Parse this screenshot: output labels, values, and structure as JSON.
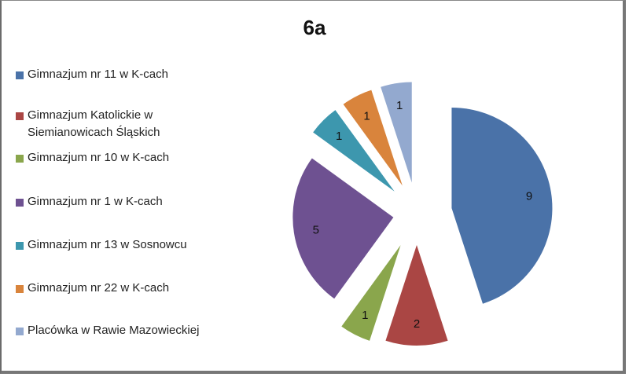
{
  "chart_data": {
    "type": "pie",
    "title": "6a",
    "exploded": true,
    "legend_position": "left",
    "categories": [
      "Gimnazjum nr 11 w K-cach",
      "Gimnazjum Katolickie w Siemianowicach Śląskich",
      "Gimnazjum nr 10 w K-cach",
      "Gimnazjum nr 1 w K-cach",
      "Gimnazjum nr 13 w Sosnowcu",
      "Gimnazjum nr 22 w K-cach",
      "Placówka w Rawie Mazowieckiej"
    ],
    "values": [
      9,
      2,
      1,
      5,
      1,
      1,
      1
    ],
    "colors": [
      "#4a72a8",
      "#aa4644",
      "#8aa64c",
      "#6e5191",
      "#3d97ae",
      "#d9843c",
      "#93a9cf"
    ],
    "data_labels": [
      "9",
      "2",
      "1",
      "5",
      "1",
      "1",
      "1"
    ]
  },
  "legend": {
    "items": [
      {
        "label_lines": [
          "Gimnazjum nr 11 w K-cach"
        ],
        "color": "#4a72a8"
      },
      {
        "label_lines": [
          "Gimnazjum Katolickie w",
          "Siemianowicach Śląskich"
        ],
        "color": "#aa4644"
      },
      {
        "label_lines": [
          "Gimnazjum nr 10 w K-cach"
        ],
        "color": "#8aa64c"
      },
      {
        "label_lines": [
          "Gimnazjum nr 1 w K-cach"
        ],
        "color": "#6e5191"
      },
      {
        "label_lines": [
          "Gimnazjum nr 13 w Sosnowcu"
        ],
        "color": "#3d97ae"
      },
      {
        "label_lines": [
          "Gimnazjum nr 22 w K-cach"
        ],
        "color": "#d9843c"
      },
      {
        "label_lines": [
          "Placówka w Rawie Mazowieckiej"
        ],
        "color": "#93a9cf"
      }
    ]
  }
}
